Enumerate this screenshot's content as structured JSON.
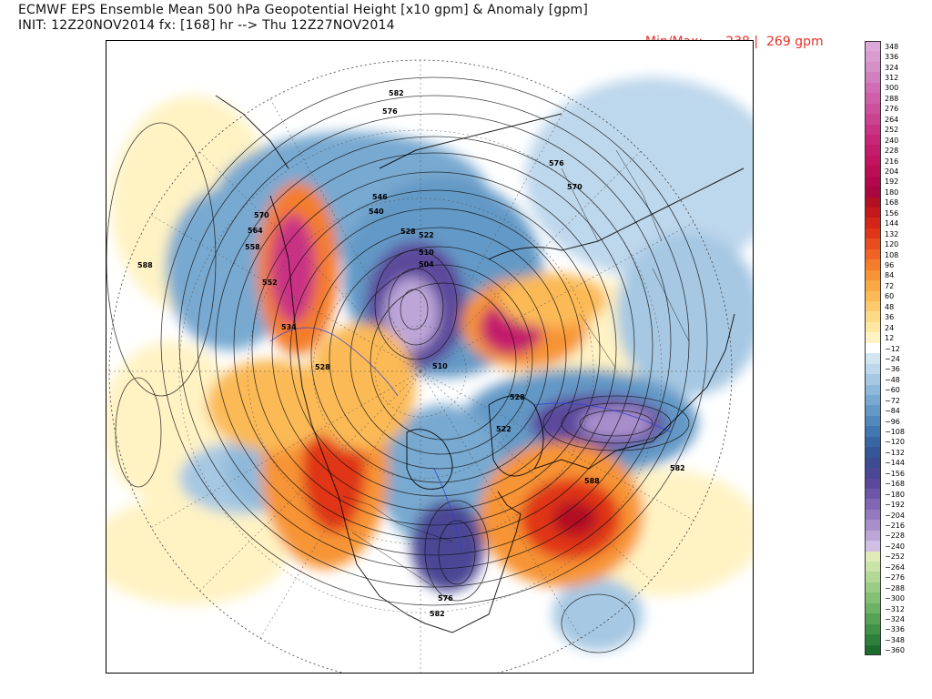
{
  "header": {
    "title": "ECMWF EPS Ensemble Mean 500 hPa Geopotential Height [x10 gpm] & Anomaly [gpm]",
    "init_line": "INIT: 12Z20NOV2014 fx: [168] hr --> Thu 12Z27NOV2014",
    "minmax_label": "Min/Max:",
    "min_value": "−238",
    "separator": "|",
    "max_value": "269",
    "unit": "gpm"
  },
  "colorbar": {
    "items": [
      {
        "label": "348",
        "color": "#dca8d8"
      },
      {
        "label": "336",
        "color": "#d89ccf"
      },
      {
        "label": "324",
        "color": "#d690c8"
      },
      {
        "label": "312",
        "color": "#d27fbf"
      },
      {
        "label": "300",
        "color": "#d06db4"
      },
      {
        "label": "288",
        "color": "#cf5fa9"
      },
      {
        "label": "276",
        "color": "#cd509d"
      },
      {
        "label": "264",
        "color": "#cb4290"
      },
      {
        "label": "252",
        "color": "#c93384"
      },
      {
        "label": "240",
        "color": "#c72678"
      },
      {
        "label": "228",
        "color": "#c41c6c"
      },
      {
        "label": "216",
        "color": "#c21460"
      },
      {
        "label": "204",
        "color": "#bd0d55"
      },
      {
        "label": "192",
        "color": "#b3084b"
      },
      {
        "label": "180",
        "color": "#aa0642"
      },
      {
        "label": "168",
        "color": "#b31023"
      },
      {
        "label": "156",
        "color": "#c4181d"
      },
      {
        "label": "144",
        "color": "#d42519"
      },
      {
        "label": "132",
        "color": "#e03519"
      },
      {
        "label": "120",
        "color": "#e84d1d"
      },
      {
        "label": "108",
        "color": "#ef6424"
      },
      {
        "label": "96",
        "color": "#f47d2c"
      },
      {
        "label": "84",
        "color": "#f79436"
      },
      {
        "label": "72",
        "color": "#f9a843"
      },
      {
        "label": "60",
        "color": "#fbba56"
      },
      {
        "label": "48",
        "color": "#fcca6c"
      },
      {
        "label": "36",
        "color": "#fdda86"
      },
      {
        "label": "24",
        "color": "#fee8a3"
      },
      {
        "label": "12",
        "color": "#fff3c4"
      },
      {
        "label": "−12",
        "color": "#ffffff"
      },
      {
        "label": "−24",
        "color": "#d4e5f2"
      },
      {
        "label": "−36",
        "color": "#bdd7ec"
      },
      {
        "label": "−48",
        "color": "#a6c8e3"
      },
      {
        "label": "−60",
        "color": "#8fb9da"
      },
      {
        "label": "−72",
        "color": "#78a9d0"
      },
      {
        "label": "−84",
        "color": "#6499c6"
      },
      {
        "label": "−96",
        "color": "#5288bc"
      },
      {
        "label": "−108",
        "color": "#4377b1"
      },
      {
        "label": "−120",
        "color": "#3866a5"
      },
      {
        "label": "−132",
        "color": "#355798"
      },
      {
        "label": "−144",
        "color": "#3d4c90"
      },
      {
        "label": "−156",
        "color": "#4c4794"
      },
      {
        "label": "−168",
        "color": "#5b4a9c"
      },
      {
        "label": "−180",
        "color": "#6d56a7"
      },
      {
        "label": "−192",
        "color": "#8066b3"
      },
      {
        "label": "−204",
        "color": "#9479bf"
      },
      {
        "label": "−216",
        "color": "#a88fcc"
      },
      {
        "label": "−228",
        "color": "#bca6d8"
      },
      {
        "label": "−240",
        "color": "#d0bfe4"
      },
      {
        "label": "−252",
        "color": "#dfeab9"
      },
      {
        "label": "−264",
        "color": "#c9e3a8"
      },
      {
        "label": "−276",
        "color": "#b2d996"
      },
      {
        "label": "−288",
        "color": "#9acc85"
      },
      {
        "label": "−300",
        "color": "#83c074"
      },
      {
        "label": "−312",
        "color": "#6cb264"
      },
      {
        "label": "−324",
        "color": "#56a255"
      },
      {
        "label": "−336",
        "color": "#419147"
      },
      {
        "label": "−348",
        "color": "#2e7f3a"
      },
      {
        "label": "−360",
        "color": "#1c6c2e"
      }
    ]
  },
  "map": {
    "contour_labels": [
      {
        "id": "n582",
        "text": "582"
      },
      {
        "id": "n576a",
        "text": "576"
      },
      {
        "id": "n576b",
        "text": "576"
      },
      {
        "id": "n570a",
        "text": "570"
      },
      {
        "id": "n570b",
        "text": "570"
      },
      {
        "id": "n564",
        "text": "564"
      },
      {
        "id": "n558",
        "text": "558"
      },
      {
        "id": "n588a",
        "text": "588"
      },
      {
        "id": "n552",
        "text": "552"
      },
      {
        "id": "n546",
        "text": "546"
      },
      {
        "id": "n540",
        "text": "540"
      },
      {
        "id": "n528a",
        "text": "528"
      },
      {
        "id": "n522a",
        "text": "522"
      },
      {
        "id": "n510a",
        "text": "510"
      },
      {
        "id": "n504",
        "text": "504"
      },
      {
        "id": "n534",
        "text": "534"
      },
      {
        "id": "n528b",
        "text": "528"
      },
      {
        "id": "n510b",
        "text": "510"
      },
      {
        "id": "n528c",
        "text": "528"
      },
      {
        "id": "n522b",
        "text": "522"
      },
      {
        "id": "n588b",
        "text": "588"
      },
      {
        "id": "n582b",
        "text": "582"
      },
      {
        "id": "n576c",
        "text": "576"
      },
      {
        "id": "n582c",
        "text": "582"
      }
    ]
  }
}
